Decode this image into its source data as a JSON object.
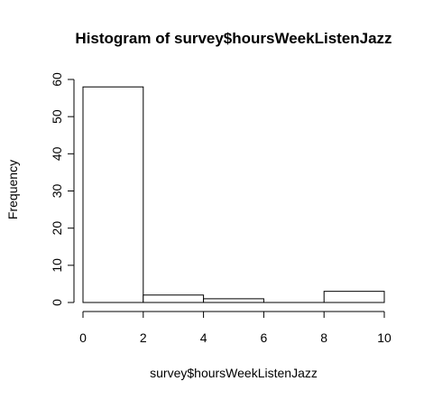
{
  "chart_data": {
    "type": "bar",
    "title": "Histogram of survey$hoursWeekListenJazz",
    "xlabel": "survey$hoursWeekListenJazz",
    "ylabel": "Frequency",
    "bins": [
      {
        "from": 0,
        "to": 2,
        "count": 58
      },
      {
        "from": 2,
        "to": 4,
        "count": 2
      },
      {
        "from": 4,
        "to": 6,
        "count": 1
      },
      {
        "from": 6,
        "to": 8,
        "count": 0
      },
      {
        "from": 8,
        "to": 10,
        "count": 3
      }
    ],
    "xlim": [
      0,
      10
    ],
    "ylim": [
      0,
      60
    ],
    "xticks": [
      0,
      2,
      4,
      6,
      8,
      10
    ],
    "yticks": [
      0,
      10,
      20,
      30,
      40,
      50,
      60
    ],
    "grid": false
  }
}
